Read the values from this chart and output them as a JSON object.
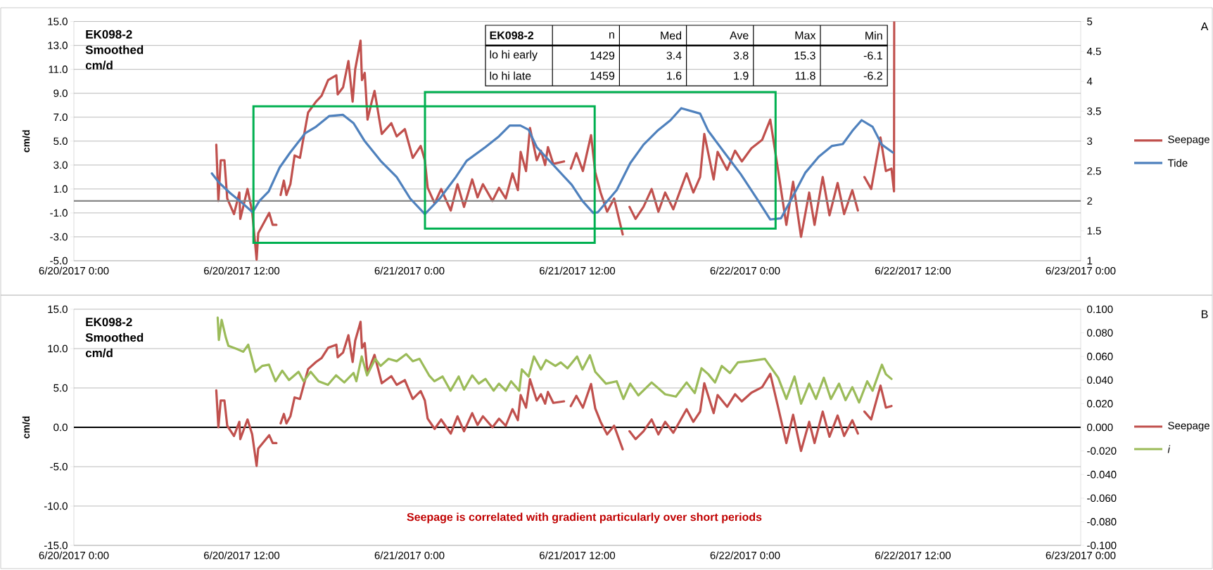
{
  "chart_data": [
    {
      "type": "line",
      "title": "EK098-2 Smoothed cm/d",
      "ylabel": "cm/d",
      "annotations": [
        "A",
        "EK098-2",
        "n",
        "Med",
        "Ave",
        "Max",
        "Min",
        "lo hi early",
        "1429",
        "3.4",
        "3.8",
        "15.3",
        "-6.1",
        "lo hi late",
        "1459",
        "1.6",
        "1.9",
        "11.8",
        "-6.2"
      ],
      "xlim": [
        "2017-06-20T00:00",
        "2017-06-23T00:00"
      ],
      "xticks": [
        {
          "value": "2017-06-20T00:00",
          "label": "6/20/2017 0:00"
        },
        {
          "value": "2017-06-20T12:00",
          "label": "6/20/2017 12:00"
        },
        {
          "value": "2017-06-21T00:00",
          "label": "6/21/2017 0:00"
        },
        {
          "value": "2017-06-21T12:00",
          "label": "6/21/2017 12:00"
        },
        {
          "value": "2017-06-22T00:00",
          "label": "6/22/2017 0:00"
        },
        {
          "value": "2017-06-22T12:00",
          "label": "6/22/2017 12:00"
        },
        {
          "value": "2017-06-23T00:00",
          "label": "6/23/2017 0:00"
        }
      ],
      "ylim": [
        -5,
        15
      ],
      "yticks": [
        {
          "value": -5,
          "label": "-5.0"
        },
        {
          "value": -3,
          "label": "-3.0"
        },
        {
          "value": -1,
          "label": "-1.0"
        },
        {
          "value": 1,
          "label": "1.0"
        },
        {
          "value": 3,
          "label": "3.0"
        },
        {
          "value": 5,
          "label": "5.0"
        },
        {
          "value": 7,
          "label": "7.0"
        },
        {
          "value": 9,
          "label": "9.0"
        },
        {
          "value": 11,
          "label": "11.0"
        },
        {
          "value": 13,
          "label": "13.0"
        },
        {
          "value": 15,
          "label": "15.0"
        }
      ],
      "y2lim": [
        1,
        5
      ],
      "y2ticks": [
        1,
        1.5,
        2,
        2.5,
        3,
        3.5,
        4,
        4.5,
        5
      ],
      "grid": "y",
      "legend": "right",
      "ref_lines": [
        {
          "axis": "y2",
          "value": 2,
          "color": "#868686"
        }
      ],
      "series": [
        {
          "name": "Seepage",
          "color": "#c0504d",
          "x": [
            "2017-06-20T10:11",
            "2017-06-20T10:20",
            "2017-06-20T10:30",
            "2017-06-20T10:46",
            "2017-06-20T10:58",
            "2017-06-20T11:27",
            "2017-06-20T11:50",
            "2017-06-20T11:54",
            "2017-06-20T12:25",
            "2017-06-20T12:45",
            "2017-06-20T13:04",
            "2017-06-20T13:11",
            "2017-06-20T13:58",
            "2017-06-20T14:13",
            "2017-06-20T14:29",
            "2017-06-20T14:38",
            "2017-06-20T14:47",
            "2017-06-20T15:01",
            "2017-06-20T15:12",
            "2017-06-20T15:29",
            "2017-06-20T15:47",
            "2017-06-20T16:10",
            "2017-06-20T16:33",
            "2017-06-20T16:45",
            "2017-06-20T17:19",
            "2017-06-20T17:43",
            "2017-06-20T18:11",
            "2017-06-20T18:46",
            "2017-06-20T18:52",
            "2017-06-20T19:15",
            "2017-06-20T19:38",
            "2017-06-20T19:56",
            "2017-06-20T20:07",
            "2017-06-20T20:30",
            "2017-06-20T20:36",
            "2017-06-20T20:48",
            "2017-06-20T21:00",
            "2017-06-20T21:18",
            "2017-06-20T21:30",
            "2017-06-20T22:01",
            "2017-06-20T22:42",
            "2017-06-20T23:05",
            "2017-06-20T23:40",
            "2017-06-21T00:14",
            "2017-06-21T00:48",
            "2017-06-21T01:06",
            "2017-06-21T01:18",
            "2017-06-21T01:48",
            "2017-06-21T02:16",
            "2017-06-21T02:34",
            "2017-06-21T02:57",
            "2017-06-21T03:26",
            "2017-06-21T03:54",
            "2017-06-21T04:29",
            "2017-06-21T04:52",
            "2017-06-21T05:15",
            "2017-06-21T05:56",
            "2017-06-21T06:24",
            "2017-06-21T06:53",
            "2017-06-21T07:22",
            "2017-06-21T07:45",
            "2017-06-21T07:57",
            "2017-06-21T08:20",
            "2017-06-21T08:37",
            "2017-06-21T09:06",
            "2017-06-21T09:24",
            "2017-06-21T09:42",
            "2017-06-21T09:54",
            "2017-06-21T10:17",
            "2017-06-21T11:03",
            "2017-06-21T11:18",
            "2017-06-21T11:32",
            "2017-06-21T11:56",
            "2017-06-21T12:24",
            "2017-06-21T12:59",
            "2017-06-21T13:17",
            "2017-06-21T13:40",
            "2017-06-21T14:08",
            "2017-06-21T14:38",
            "2017-06-21T15:15",
            "2017-06-21T15:30",
            "2017-06-21T15:44",
            "2017-06-21T16:10",
            "2017-06-21T16:44",
            "2017-06-21T17:19",
            "2017-06-21T17:48",
            "2017-06-21T18:17",
            "2017-06-21T18:52",
            "2017-06-21T19:26",
            "2017-06-21T19:49",
            "2017-06-21T20:18",
            "2017-06-21T20:47",
            "2017-06-21T21:05",
            "2017-06-21T21:45",
            "2017-06-21T22:02",
            "2017-06-21T22:43",
            "2017-06-21T23:17",
            "2017-06-21T23:46",
            "2017-06-22T00:27",
            "2017-06-22T01:13",
            "2017-06-22T01:48",
            "2017-06-22T02:22",
            "2017-06-22T02:57",
            "2017-06-22T03:26",
            "2017-06-22T04:00",
            "2017-06-22T04:35",
            "2017-06-22T04:58",
            "2017-06-22T05:33",
            "2017-06-22T06:02",
            "2017-06-22T06:37",
            "2017-06-22T07:05",
            "2017-06-22T07:40",
            "2017-06-22T08:04",
            "2017-06-22T08:18",
            "2017-06-22T08:32",
            "2017-06-22T09:01",
            "2017-06-22T09:41",
            "2017-06-22T10:04",
            "2017-06-22T10:28",
            "2017-06-22T10:39",
            "2017-06-22T10:40"
          ],
          "values": [
            4.7,
            0.0,
            3.4,
            3.4,
            0.2,
            -1.1,
            0.7,
            -1.5,
            1.0,
            -0.9,
            -4.9,
            -2.7,
            -1.0,
            -2.0,
            -2.0,
            null,
            0.5,
            1.7,
            0.5,
            1.4,
            3.8,
            3.6,
            6.1,
            7.4,
            8.3,
            8.8,
            10.1,
            10.5,
            8.9,
            9.5,
            11.7,
            8.3,
            11.0,
            13.4,
            10.1,
            10.7,
            6.8,
            8.3,
            9.2,
            5.6,
            6.5,
            5.4,
            6.0,
            3.6,
            4.6,
            3.4,
            1.1,
            -0.2,
            1.0,
            0.2,
            -0.8,
            1.4,
            -0.5,
            1.8,
            0.3,
            1.4,
            0.0,
            1.1,
            0.2,
            2.3,
            0.9,
            4.1,
            2.5,
            6.1,
            3.4,
            4.2,
            3.0,
            4.5,
            3.1,
            3.3,
            null,
            2.7,
            4.0,
            2.5,
            5.5,
            2.4,
            0.7,
            -0.9,
            0.2,
            -2.8,
            null,
            -0.5,
            -1.5,
            -0.5,
            1.0,
            -0.9,
            0.7,
            -0.7,
            1.1,
            2.3,
            0.7,
            2.0,
            5.6,
            1.8,
            4.1,
            2.6,
            4.2,
            3.3,
            4.4,
            5.1,
            6.8,
            2.5,
            -2.0,
            1.6,
            -3.0,
            0.7,
            -2.0,
            2.0,
            -1.2,
            1.5,
            -1.1,
            0.9,
            -0.8,
            null,
            2.0,
            1.0,
            5.3,
            2.5,
            2.7,
            0.8,
            15
          ]
        },
        {
          "name": "Tide",
          "color": "#4f81bd",
          "axis": "y2",
          "x": [
            "2017-06-20T09:52",
            "2017-06-20T10:22",
            "2017-06-20T11:08",
            "2017-06-20T12:07",
            "2017-06-20T12:47",
            "2017-06-20T13:16",
            "2017-06-20T13:56",
            "2017-06-20T14:43",
            "2017-06-20T15:28",
            "2017-06-20T16:32",
            "2017-06-20T17:19",
            "2017-06-20T18:16",
            "2017-06-20T19:14",
            "2017-06-20T20:00",
            "2017-06-20T20:46",
            "2017-06-20T21:56",
            "2017-06-20T23:05",
            "2017-06-21T00:03",
            "2017-06-21T01:06",
            "2017-06-21T02:10",
            "2017-06-21T03:19",
            "2017-06-21T04:05",
            "2017-06-21T05:26",
            "2017-06-21T06:24",
            "2017-06-21T07:10",
            "2017-06-21T07:56",
            "2017-06-21T08:31",
            "2017-06-21T09:06",
            "2017-06-21T10:15",
            "2017-06-21T11:36",
            "2017-06-21T12:22",
            "2017-06-21T13:08",
            "2017-06-21T13:28",
            "2017-06-21T14:49",
            "2017-06-21T15:47",
            "2017-06-21T16:44",
            "2017-06-21T17:43",
            "2017-06-21T18:40",
            "2017-06-21T19:26",
            "2017-06-21T20:47",
            "2017-06-21T21:22",
            "2017-06-21T22:31",
            "2017-06-21T23:41",
            "2017-06-22T00:50",
            "2017-06-22T01:48",
            "2017-06-22T02:34",
            "2017-06-22T03:20",
            "2017-06-22T04:18",
            "2017-06-22T05:16",
            "2017-06-22T06:13",
            "2017-06-22T06:59",
            "2017-06-22T07:40",
            "2017-06-22T08:20",
            "2017-06-22T09:07",
            "2017-06-22T09:47",
            "2017-06-22T10:34"
          ],
          "values": [
            2.46,
            2.31,
            2.14,
            1.95,
            1.81,
            2.0,
            2.16,
            2.56,
            2.81,
            3.13,
            3.24,
            3.42,
            3.44,
            3.3,
            3.01,
            2.67,
            2.4,
            2.04,
            1.78,
            2.04,
            2.4,
            2.67,
            2.9,
            3.08,
            3.26,
            3.26,
            3.19,
            2.9,
            2.61,
            2.27,
            2.0,
            1.8,
            1.81,
            2.18,
            2.63,
            2.94,
            3.17,
            3.35,
            3.55,
            3.46,
            3.17,
            2.81,
            2.45,
            2.04,
            1.69,
            1.71,
            2.04,
            2.47,
            2.74,
            2.92,
            2.95,
            3.17,
            3.35,
            3.24,
            2.94,
            2.81
          ]
        }
      ]
    },
    {
      "type": "line",
      "title": "EK098-2 Smoothed cm/d",
      "ylabel": "cm/d",
      "annotations": [
        "B",
        "Seepage is correlated with gradient particularly over short periods"
      ],
      "xlim": [
        "2017-06-20T00:00",
        "2017-06-23T00:00"
      ],
      "xticks": [
        {
          "value": "2017-06-20T00:00",
          "label": "6/20/2017 0:00"
        },
        {
          "value": "2017-06-20T12:00",
          "label": "6/20/2017 12:00"
        },
        {
          "value": "2017-06-21T00:00",
          "label": "6/21/2017 0:00"
        },
        {
          "value": "2017-06-21T12:00",
          "label": "6/21/2017 12:00"
        },
        {
          "value": "2017-06-22T00:00",
          "label": "6/22/2017 0:00"
        },
        {
          "value": "2017-06-22T12:00",
          "label": "6/22/2017 12:00"
        },
        {
          "value": "2017-06-23T00:00",
          "label": "6/23/2017 0:00"
        }
      ],
      "ylim": [
        -15,
        15
      ],
      "yticks": [
        {
          "value": -15,
          "label": "-15.0"
        },
        {
          "value": -10,
          "label": "-10.0"
        },
        {
          "value": -5,
          "label": "-5.0"
        },
        {
          "value": 0,
          "label": "0.0"
        },
        {
          "value": 5,
          "label": "5.0"
        },
        {
          "value": 10,
          "label": "10.0"
        },
        {
          "value": 15,
          "label": "15.0"
        }
      ],
      "y2lim": [
        -0.1,
        0.1
      ],
      "y2ticks": [
        {
          "value": -0.1,
          "label": "-0.100"
        },
        {
          "value": -0.08,
          "label": "-0.080"
        },
        {
          "value": -0.06,
          "label": "-0.060"
        },
        {
          "value": -0.04,
          "label": "-0.040"
        },
        {
          "value": -0.02,
          "label": "-0.020"
        },
        {
          "value": 0,
          "label": "0.000"
        },
        {
          "value": 0.02,
          "label": "0.020"
        },
        {
          "value": 0.04,
          "label": "0.040"
        },
        {
          "value": 0.06,
          "label": "0.060"
        },
        {
          "value": 0.08,
          "label": "0.080"
        },
        {
          "value": 0.1,
          "label": "0.100"
        }
      ],
      "grid": "y",
      "legend": "right",
      "ref_lines": [
        {
          "axis": "y",
          "value": 0,
          "color": "#000000"
        }
      ],
      "series": [
        {
          "name": "Seepage",
          "color": "#c0504d",
          "x": [
            "2017-06-20T10:11",
            "2017-06-20T10:20",
            "2017-06-20T10:30",
            "2017-06-20T10:46",
            "2017-06-20T10:58",
            "2017-06-20T11:27",
            "2017-06-20T11:50",
            "2017-06-20T11:54",
            "2017-06-20T12:25",
            "2017-06-20T12:45",
            "2017-06-20T13:04",
            "2017-06-20T13:11",
            "2017-06-20T13:58",
            "2017-06-20T14:13",
            "2017-06-20T14:29",
            "2017-06-20T14:38",
            "2017-06-20T14:47",
            "2017-06-20T15:01",
            "2017-06-20T15:12",
            "2017-06-20T15:29",
            "2017-06-20T15:47",
            "2017-06-20T16:10",
            "2017-06-20T16:33",
            "2017-06-20T16:45",
            "2017-06-20T17:19",
            "2017-06-20T17:43",
            "2017-06-20T18:11",
            "2017-06-20T18:46",
            "2017-06-20T18:52",
            "2017-06-20T19:15",
            "2017-06-20T19:38",
            "2017-06-20T19:56",
            "2017-06-20T20:07",
            "2017-06-20T20:30",
            "2017-06-20T20:36",
            "2017-06-20T20:48",
            "2017-06-20T21:00",
            "2017-06-20T21:18",
            "2017-06-20T21:30",
            "2017-06-20T22:01",
            "2017-06-20T22:42",
            "2017-06-20T23:05",
            "2017-06-20T23:40",
            "2017-06-21T00:14",
            "2017-06-21T00:48",
            "2017-06-21T01:06",
            "2017-06-21T01:18",
            "2017-06-21T01:48",
            "2017-06-21T02:16",
            "2017-06-21T02:34",
            "2017-06-21T02:57",
            "2017-06-21T03:26",
            "2017-06-21T03:54",
            "2017-06-21T04:29",
            "2017-06-21T04:52",
            "2017-06-21T05:15",
            "2017-06-21T05:56",
            "2017-06-21T06:24",
            "2017-06-21T06:53",
            "2017-06-21T07:22",
            "2017-06-21T07:45",
            "2017-06-21T07:57",
            "2017-06-21T08:20",
            "2017-06-21T08:37",
            "2017-06-21T09:06",
            "2017-06-21T09:24",
            "2017-06-21T09:42",
            "2017-06-21T09:54",
            "2017-06-21T10:17",
            "2017-06-21T11:03",
            "2017-06-21T11:18",
            "2017-06-21T11:32",
            "2017-06-21T11:56",
            "2017-06-21T12:24",
            "2017-06-21T12:59",
            "2017-06-21T13:17",
            "2017-06-21T13:40",
            "2017-06-21T14:08",
            "2017-06-21T14:38",
            "2017-06-21T15:15",
            "2017-06-21T15:30",
            "2017-06-21T15:44",
            "2017-06-21T16:10",
            "2017-06-21T16:44",
            "2017-06-21T17:19",
            "2017-06-21T17:48",
            "2017-06-21T18:17",
            "2017-06-21T18:52",
            "2017-06-21T19:26",
            "2017-06-21T19:49",
            "2017-06-21T20:18",
            "2017-06-21T20:47",
            "2017-06-21T21:05",
            "2017-06-21T21:45",
            "2017-06-21T22:02",
            "2017-06-21T22:43",
            "2017-06-21T23:17",
            "2017-06-21T23:46",
            "2017-06-22T00:27",
            "2017-06-22T01:13",
            "2017-06-22T01:48",
            "2017-06-22T02:22",
            "2017-06-22T02:57",
            "2017-06-22T03:26",
            "2017-06-22T04:00",
            "2017-06-22T04:35",
            "2017-06-22T04:58",
            "2017-06-22T05:33",
            "2017-06-22T06:02",
            "2017-06-22T06:37",
            "2017-06-22T07:05",
            "2017-06-22T07:40",
            "2017-06-22T08:04",
            "2017-06-22T08:18",
            "2017-06-22T08:32",
            "2017-06-22T09:01",
            "2017-06-22T09:41",
            "2017-06-22T10:04",
            "2017-06-22T10:28"
          ],
          "values": [
            4.7,
            0.0,
            3.4,
            3.4,
            0.2,
            -1.1,
            0.7,
            -1.5,
            1.0,
            -0.9,
            -4.9,
            -2.7,
            -1.0,
            -2.0,
            -2.0,
            null,
            0.5,
            1.7,
            0.5,
            1.4,
            3.8,
            3.6,
            6.1,
            7.4,
            8.3,
            8.8,
            10.1,
            10.5,
            8.9,
            9.5,
            11.7,
            8.3,
            11.0,
            13.4,
            10.1,
            10.7,
            6.8,
            8.3,
            9.2,
            5.6,
            6.5,
            5.4,
            6.0,
            3.6,
            4.6,
            3.4,
            1.1,
            -0.2,
            1.0,
            0.2,
            -0.8,
            1.4,
            -0.5,
            1.8,
            0.3,
            1.4,
            0.0,
            1.1,
            0.2,
            2.3,
            0.9,
            4.1,
            2.5,
            6.1,
            3.4,
            4.2,
            3.0,
            4.5,
            3.1,
            3.3,
            null,
            2.7,
            4.0,
            2.5,
            5.5,
            2.4,
            0.7,
            -0.9,
            0.2,
            -2.8,
            null,
            -0.5,
            -1.5,
            -0.5,
            1.0,
            -0.9,
            0.7,
            -0.7,
            1.1,
            2.3,
            0.7,
            2.0,
            5.6,
            1.8,
            4.1,
            2.6,
            4.2,
            3.3,
            4.4,
            5.1,
            6.8,
            2.5,
            -2.0,
            1.6,
            -3.0,
            0.7,
            -2.0,
            2.0,
            -1.2,
            1.5,
            -1.1,
            0.9,
            -0.8,
            null,
            2.0,
            1.0,
            5.3,
            2.5,
            2.7
          ]
        },
        {
          "name": "*i*",
          "color": "#9bbb59",
          "axis": "y2",
          "x": [
            "2017-06-20T10:17",
            "2017-06-20T10:22",
            "2017-06-20T10:34",
            "2017-06-20T10:52",
            "2017-06-20T11:03",
            "2017-06-20T11:43",
            "2017-06-20T12:07",
            "2017-06-20T12:28",
            "2017-06-20T12:59",
            "2017-06-20T13:28",
            "2017-06-20T13:57",
            "2017-06-20T14:25",
            "2017-06-20T14:54",
            "2017-06-20T15:23",
            "2017-06-20T16:04",
            "2017-06-20T16:26",
            "2017-06-20T16:56",
            "2017-06-20T17:30",
            "2017-06-20T18:10",
            "2017-06-20T18:45",
            "2017-06-20T19:20",
            "2017-06-20T20:00",
            "2017-06-20T20:12",
            "2017-06-20T20:35",
            "2017-06-20T20:58",
            "2017-06-20T21:33",
            "2017-06-20T21:56",
            "2017-06-20T22:30",
            "2017-06-20T23:05",
            "2017-06-20T23:46",
            "2017-06-21T00:14",
            "2017-06-21T00:43",
            "2017-06-21T01:24",
            "2017-06-21T01:47",
            "2017-06-21T02:22",
            "2017-06-21T02:56",
            "2017-06-21T03:31",
            "2017-06-21T03:54",
            "2017-06-21T04:29",
            "2017-06-21T04:57",
            "2017-06-21T05:26",
            "2017-06-21T06:01",
            "2017-06-21T06:24",
            "2017-06-21T06:53",
            "2017-06-21T07:16",
            "2017-06-21T07:51",
            "2017-06-21T08:02",
            "2017-06-21T08:31",
            "2017-06-21T08:54",
            "2017-06-21T09:24",
            "2017-06-21T09:46",
            "2017-06-21T10:26",
            "2017-06-21T10:49",
            "2017-06-21T11:18",
            "2017-06-21T11:59",
            "2017-06-21T12:22",
            "2017-06-21T12:54",
            "2017-06-21T13:17",
            "2017-06-21T14:03",
            "2017-06-21T14:49",
            "2017-06-21T15:18",
            "2017-06-21T15:47",
            "2017-06-21T16:22",
            "2017-06-21T17:19",
            "2017-06-21T18:17",
            "2017-06-21T19:03",
            "2017-06-21T19:49",
            "2017-06-21T20:24",
            "2017-06-21T20:53",
            "2017-06-21T21:22",
            "2017-06-21T21:51",
            "2017-06-21T22:20",
            "2017-06-21T22:55",
            "2017-06-21T23:29",
            "2017-06-22T00:16",
            "2017-06-22T01:25",
            "2017-06-22T02:22",
            "2017-06-22T02:57",
            "2017-06-22T03:32",
            "2017-06-22T04:00",
            "2017-06-22T04:35",
            "2017-06-22T05:04",
            "2017-06-22T05:38",
            "2017-06-22T06:08",
            "2017-06-22T06:43",
            "2017-06-22T07:11",
            "2017-06-22T07:40",
            "2017-06-22T08:09",
            "2017-06-22T08:44",
            "2017-06-22T09:07",
            "2017-06-22T09:47",
            "2017-06-22T10:04",
            "2017-06-22T10:28"
          ],
          "values": [
            0.093,
            0.074,
            0.091,
            0.076,
            0.069,
            0.066,
            0.064,
            0.07,
            0.047,
            0.052,
            0.053,
            0.039,
            0.048,
            0.04,
            0.047,
            0.039,
            0.047,
            0.039,
            0.036,
            0.044,
            0.038,
            0.046,
            0.039,
            0.06,
            0.044,
            0.058,
            0.052,
            0.058,
            0.056,
            0.062,
            0.056,
            0.058,
            0.044,
            0.039,
            0.043,
            0.031,
            0.043,
            0.032,
            0.044,
            0.037,
            0.041,
            0.031,
            0.037,
            0.031,
            0.039,
            0.031,
            0.049,
            0.043,
            0.06,
            0.049,
            0.057,
            0.052,
            0.055,
            0.05,
            0.06,
            0.049,
            0.061,
            0.047,
            0.037,
            0.039,
            0.024,
            0.037,
            0.027,
            0.038,
            0.028,
            0.026,
            0.038,
            0.029,
            0.05,
            0.045,
            0.038,
            0.052,
            0.046,
            0.055,
            0.056,
            0.058,
            0.042,
            0.024,
            0.043,
            0.02,
            0.037,
            0.024,
            0.042,
            0.024,
            0.037,
            0.023,
            0.034,
            0.021,
            0.039,
            0.031,
            0.053,
            0.045,
            0.041
          ]
        }
      ]
    }
  ]
}
